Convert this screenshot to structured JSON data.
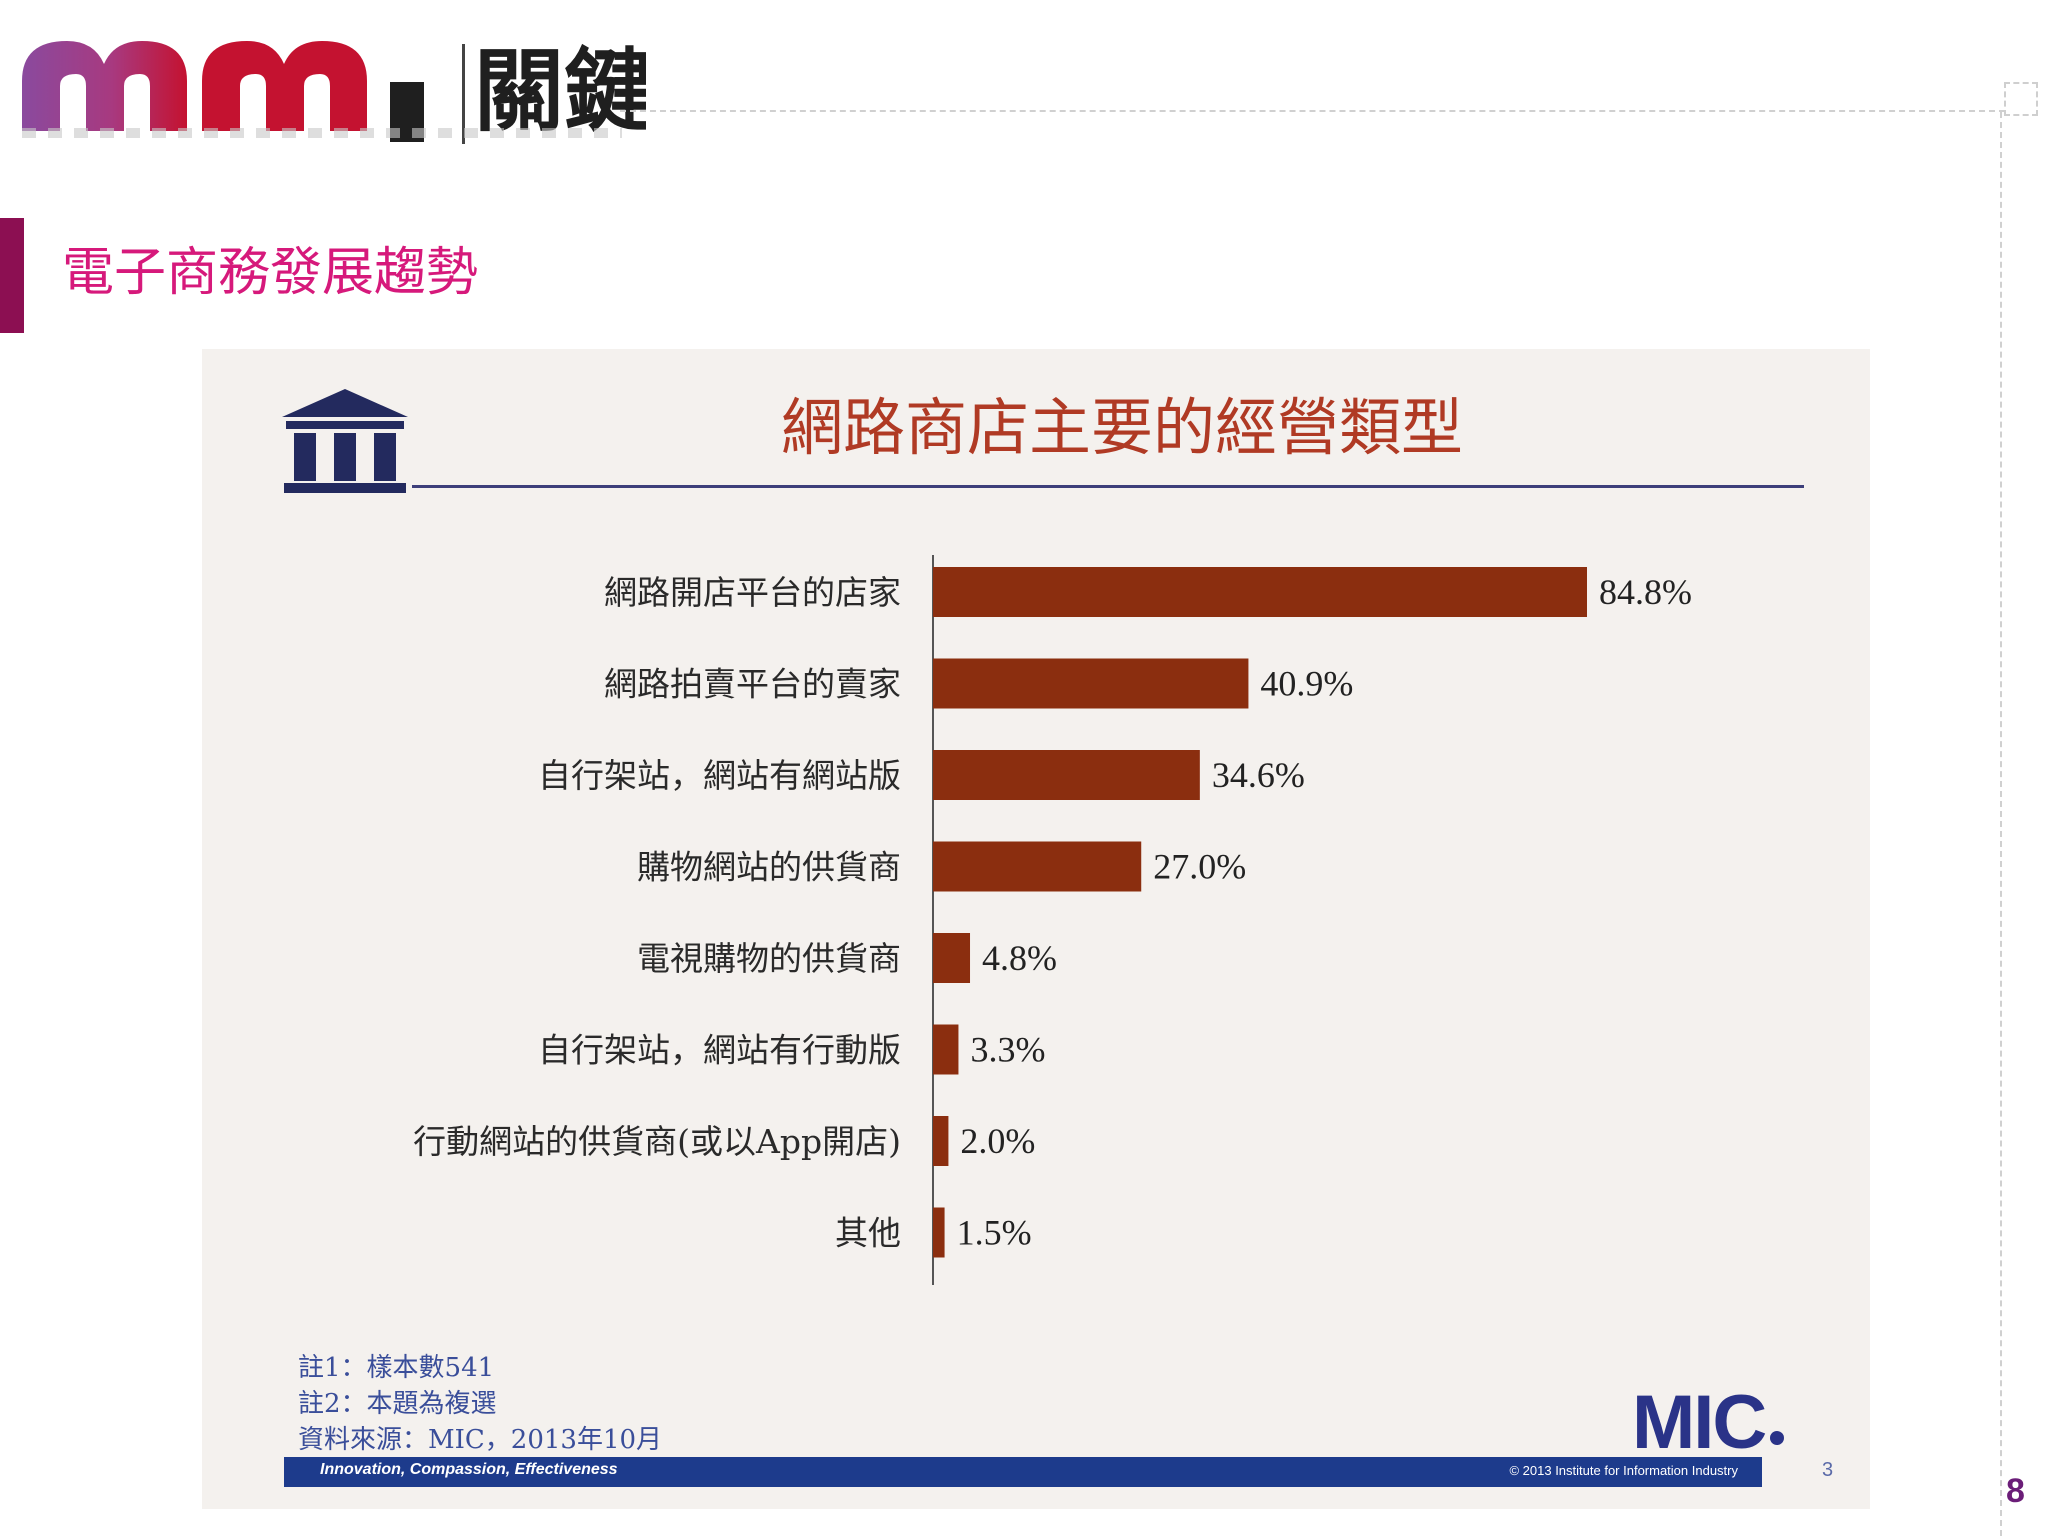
{
  "header": {
    "logo_cjk": "關鍵",
    "slide_title": "電子商務發展趨勢",
    "page_number": "8"
  },
  "colors": {
    "accent": "#8c0f52",
    "title": "#d6197b",
    "bar": "#8b2e0f",
    "brand_blue": "#1d3b8c"
  },
  "icons": [
    "mm-logo-icon",
    "institute-building-icon",
    "mic-logo"
  ],
  "chart_data": {
    "type": "bar",
    "orientation": "horizontal",
    "title": "網路商店主要的經營類型",
    "categories": [
      "網路開店平台的店家",
      "網路拍賣平台的賣家",
      "自行架站，網站有網站版",
      "購物網站的供貨商",
      "電視購物的供貨商",
      "自行架站，網站有行動版",
      "行動網站的供貨商(或以App開店)",
      "其他"
    ],
    "values": [
      84.8,
      40.9,
      34.6,
      27.0,
      4.8,
      3.3,
      2.0,
      1.5
    ],
    "value_labels": [
      "84.8%",
      "40.9%",
      "34.6%",
      "27.0%",
      "4.8%",
      "3.3%",
      "2.0%",
      "1.5%"
    ],
    "xlim": [
      0,
      100
    ],
    "grid": false,
    "legend": "none"
  },
  "notes": [
    "註1：樣本數541",
    "註2：本題為複選",
    "資料來源：MIC，2013年10月"
  ],
  "footer": {
    "brand": "MIC",
    "tagline": "Innovation, Compassion, Effectiveness",
    "copyright": "© 2013 Institute for Information Industry",
    "slide_number": "3"
  }
}
